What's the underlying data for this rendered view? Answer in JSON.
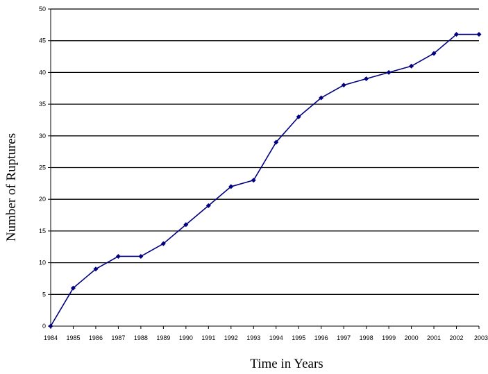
{
  "chart_data": {
    "type": "line",
    "xlabel": "Time in Years",
    "ylabel": "Number of Ruptures",
    "ylim": [
      0,
      50
    ],
    "ytick_step": 5,
    "grid": "horizontal",
    "categories": [
      "1984",
      "1985",
      "1986",
      "1987",
      "1988",
      "1989",
      "1990",
      "1991",
      "1992",
      "1993",
      "1994",
      "1995",
      "1996",
      "1997",
      "1998",
      "1999",
      "2000",
      "2001",
      "2002",
      "2003"
    ],
    "series": [
      {
        "values": [
          0,
          6,
          9,
          11,
          11,
          13,
          16,
          19,
          22,
          23,
          29,
          33,
          36,
          38,
          39,
          40,
          41,
          43,
          46,
          46
        ],
        "color": "#000080"
      }
    ]
  }
}
